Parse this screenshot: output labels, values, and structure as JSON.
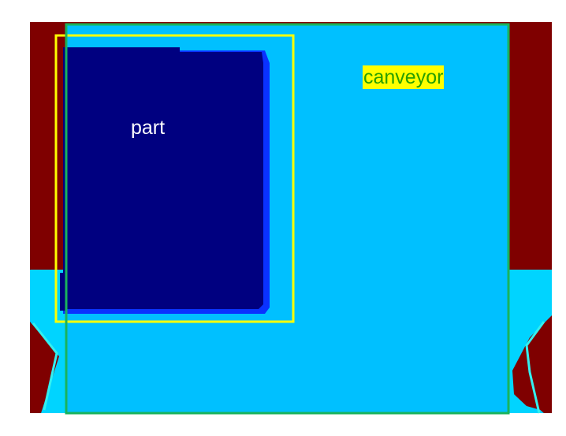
{
  "segmentation": {
    "colors": {
      "background_red": "#7f0000",
      "conveyor": "#00c0ff",
      "part": "#000080",
      "part_edge": "#0a32ff",
      "floor_cyan": "#00d4ff",
      "edge_highlight": "#33f0f0"
    }
  },
  "detections": [
    {
      "label": "part",
      "box_color": "#ffff00",
      "label_color": "#ffffff"
    },
    {
      "label": "canveyor",
      "box_color": "#1ab35c",
      "label_color": "#2aa000",
      "label_background": "#ffff00"
    }
  ]
}
